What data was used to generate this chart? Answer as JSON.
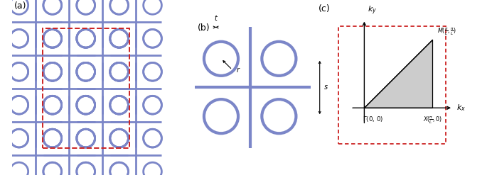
{
  "fig_width": 6.85,
  "fig_height": 2.47,
  "dpi": 100,
  "bg_color": "#ffffff",
  "blue_color": "#7b86c8",
  "red_dashed_color": "#cc2222",
  "panel_labels": [
    "(a)",
    "(b)",
    "(c)"
  ],
  "panel_label_fontsize": 9
}
